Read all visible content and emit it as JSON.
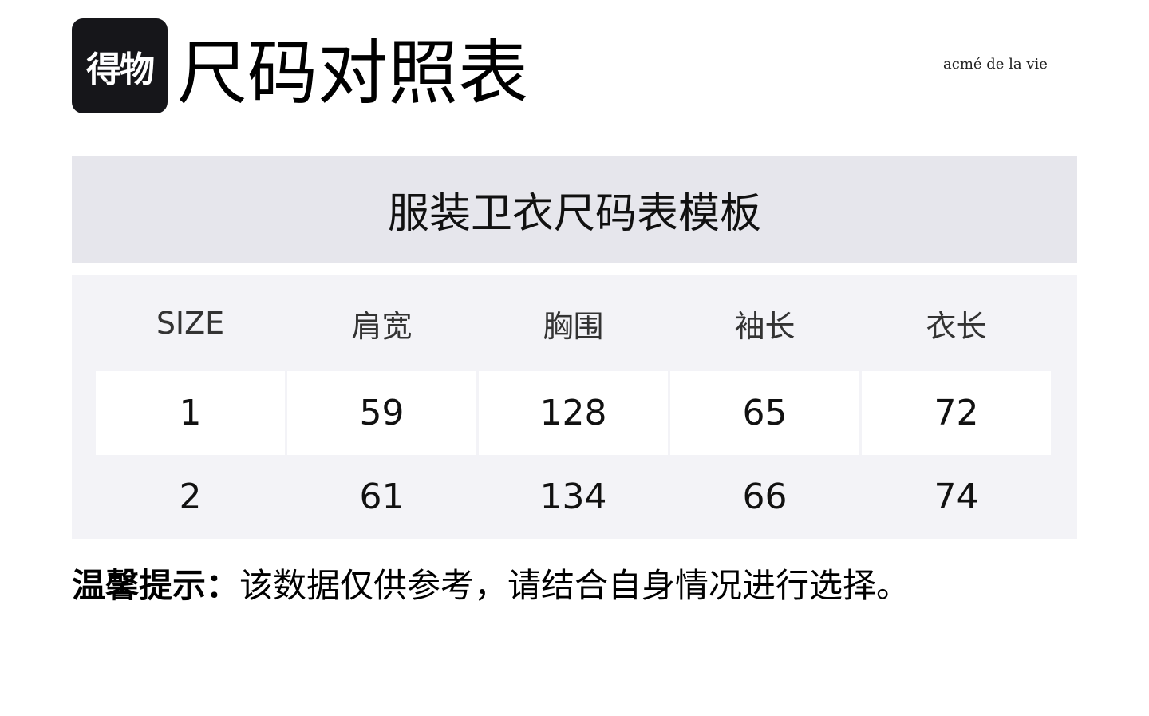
{
  "logo": {
    "text": "得物"
  },
  "title": "尺码对照表",
  "brand": "acmé de la vie",
  "table": {
    "caption": "服装卫衣尺码表模板",
    "headers": [
      "SIZE",
      "肩宽",
      "胸围",
      "袖长",
      "衣长"
    ],
    "rows": [
      [
        "1",
        "59",
        "128",
        "65",
        "72"
      ],
      [
        "2",
        "61",
        "134",
        "66",
        "74"
      ]
    ]
  },
  "note": {
    "label": "温馨提示：",
    "text": "该数据仅供参考，请结合自身情况进行选择。"
  }
}
